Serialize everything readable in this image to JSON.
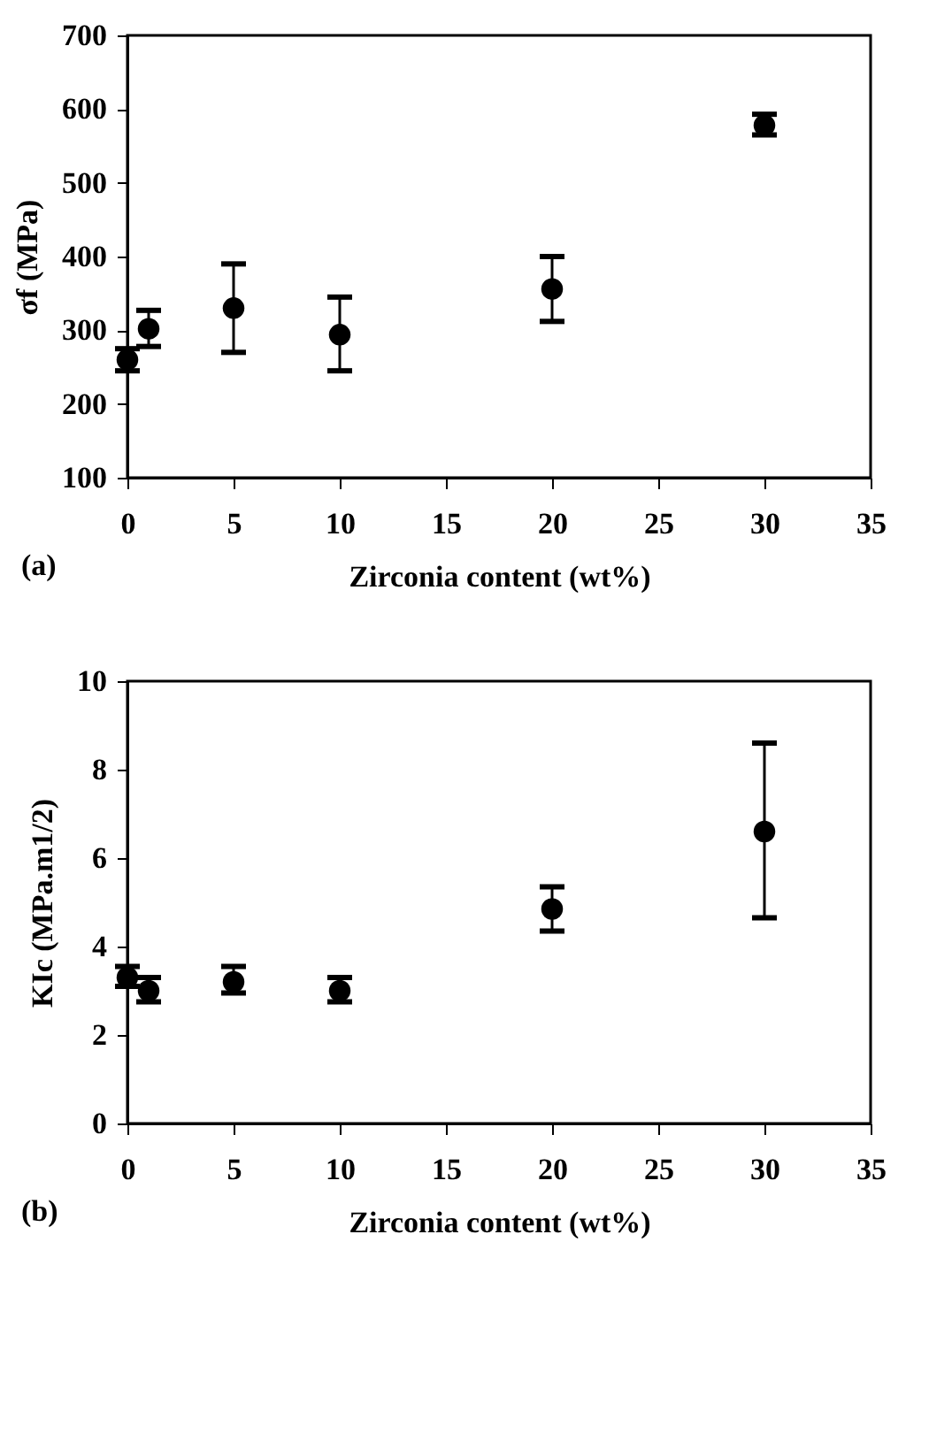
{
  "chart_data": [
    {
      "type": "scatter",
      "xlabel": "Zirconia content (wt%)",
      "ylabel": "σf (MPa)",
      "annotations": [
        "(a)"
      ],
      "x": [
        0,
        1,
        5,
        10,
        20,
        30
      ],
      "series": [
        {
          "color": "#000000",
          "values": [
            260,
            302,
            330,
            294,
            356,
            578
          ],
          "errors": [
            [
              245,
              275
            ],
            [
              278,
              327
            ],
            [
              270,
              390
            ],
            [
              245,
              345
            ],
            [
              312,
              400
            ],
            [
              565,
              593
            ]
          ]
        }
      ],
      "xlim": [
        0,
        35
      ],
      "xticks": [
        0,
        5,
        10,
        15,
        20,
        25,
        30,
        35
      ],
      "ylim": [
        100,
        700
      ],
      "yticks": [
        100,
        200,
        300,
        400,
        500,
        600,
        700
      ],
      "grid": false,
      "marker": "circle"
    },
    {
      "type": "scatter",
      "xlabel": "Zirconia content (wt%)",
      "ylabel": "KIc (MPa.m1/2)",
      "annotations": [
        "(b)"
      ],
      "x": [
        0,
        1,
        5,
        10,
        20,
        30
      ],
      "series": [
        {
          "color": "#000000",
          "values": [
            3.3,
            3.0,
            3.2,
            3.0,
            4.85,
            6.6
          ],
          "errors": [
            [
              3.1,
              3.55
            ],
            [
              2.75,
              3.3
            ],
            [
              2.95,
              3.55
            ],
            [
              2.75,
              3.3
            ],
            [
              4.35,
              5.35
            ],
            [
              4.65,
              8.6
            ]
          ]
        }
      ],
      "xlim": [
        0,
        35
      ],
      "xticks": [
        0,
        5,
        10,
        15,
        20,
        25,
        30,
        35
      ],
      "ylim": [
        0,
        10
      ],
      "yticks": [
        0,
        2,
        4,
        6,
        8,
        10
      ],
      "grid": false,
      "marker": "circle"
    }
  ]
}
